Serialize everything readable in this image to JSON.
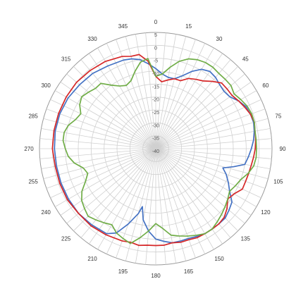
{
  "chart_data": {
    "type": "line",
    "subtype": "polar-radiation-pattern",
    "title": "",
    "angle_direction": "clockwise",
    "angle_zero": "top",
    "angle_ticks": [
      "0",
      "15",
      "30",
      "45",
      "60",
      "75",
      "90",
      "105",
      "120",
      "135",
      "150",
      "165",
      "180",
      "195",
      "210",
      "225",
      "240",
      "255",
      "270",
      "285",
      "300",
      "315",
      "330",
      "345"
    ],
    "radial_ticks": [
      "5",
      "0",
      "-5",
      "-10",
      "-15",
      "-20",
      "-25",
      "-30",
      "-35",
      "-40"
    ],
    "rlim": [
      -40,
      5
    ],
    "grid": true,
    "legend": "none",
    "series": [
      {
        "color": "#4472c4",
        "points": [
          [
            0,
            -9
          ],
          [
            5,
            -11
          ],
          [
            10,
            -12
          ],
          [
            15,
            -12
          ],
          [
            20,
            -10
          ],
          [
            25,
            -7
          ],
          [
            30,
            -4.5
          ],
          [
            35,
            -3.5
          ],
          [
            40,
            -4
          ],
          [
            45,
            -5
          ],
          [
            50,
            -5.5
          ],
          [
            55,
            -5
          ],
          [
            60,
            -3
          ],
          [
            65,
            -1.5
          ],
          [
            70,
            -1
          ],
          [
            75,
            -0.8
          ],
          [
            80,
            -1.3
          ],
          [
            85,
            -2
          ],
          [
            90,
            -3
          ],
          [
            95,
            -4
          ],
          [
            100,
            -5
          ],
          [
            103,
            -9
          ],
          [
            106,
            -13
          ],
          [
            110,
            -11
          ],
          [
            115,
            -9
          ],
          [
            120,
            -7
          ],
          [
            125,
            -4
          ],
          [
            130,
            -3
          ],
          [
            135,
            -2
          ],
          [
            140,
            -2
          ],
          [
            145,
            -2
          ],
          [
            150,
            -2
          ],
          [
            155,
            -2.5
          ],
          [
            160,
            -3
          ],
          [
            165,
            -3
          ],
          [
            170,
            -3
          ],
          [
            175,
            -4
          ],
          [
            180,
            -5
          ],
          [
            185,
            -8
          ],
          [
            190,
            -12
          ],
          [
            193,
            -17
          ],
          [
            195,
            -14
          ],
          [
            200,
            -9
          ],
          [
            205,
            -4
          ],
          [
            210,
            -2
          ],
          [
            220,
            -1.5
          ],
          [
            230,
            -1
          ],
          [
            240,
            -1
          ],
          [
            250,
            -1
          ],
          [
            260,
            -1
          ],
          [
            270,
            -0.8
          ],
          [
            280,
            -0.5
          ],
          [
            290,
            -0.5
          ],
          [
            300,
            -0.8
          ],
          [
            310,
            -1.5
          ],
          [
            320,
            -2
          ],
          [
            330,
            -3
          ],
          [
            340,
            -3.5
          ],
          [
            345,
            -4
          ],
          [
            350,
            -5
          ],
          [
            355,
            -7
          ]
        ]
      },
      {
        "color": "#d62728",
        "points": [
          [
            0,
            -12
          ],
          [
            5,
            -14
          ],
          [
            10,
            -13
          ],
          [
            15,
            -12
          ],
          [
            20,
            -12
          ],
          [
            25,
            -10
          ],
          [
            30,
            -9
          ],
          [
            35,
            -8
          ],
          [
            40,
            -6
          ],
          [
            45,
            -4
          ],
          [
            50,
            -4
          ],
          [
            55,
            -4
          ],
          [
            60,
            -3
          ],
          [
            65,
            -2
          ],
          [
            70,
            -1
          ],
          [
            75,
            -0.5
          ],
          [
            80,
            -1
          ],
          [
            85,
            -1.2
          ],
          [
            90,
            -1.5
          ],
          [
            95,
            -2
          ],
          [
            100,
            -2.5
          ],
          [
            105,
            -2.8
          ],
          [
            110,
            -3
          ],
          [
            115,
            -3
          ],
          [
            120,
            -5
          ],
          [
            125,
            -6
          ],
          [
            130,
            -4
          ],
          [
            135,
            -2.5
          ],
          [
            140,
            -2
          ],
          [
            145,
            -2
          ],
          [
            150,
            -2
          ],
          [
            155,
            -2
          ],
          [
            160,
            -2.5
          ],
          [
            165,
            -2.5
          ],
          [
            170,
            -3
          ],
          [
            175,
            -2.5
          ],
          [
            180,
            -2.5
          ],
          [
            185,
            -2.5
          ],
          [
            190,
            -2
          ],
          [
            195,
            -2.5
          ],
          [
            200,
            -2
          ],
          [
            210,
            -1.5
          ],
          [
            220,
            -1
          ],
          [
            230,
            -1
          ],
          [
            240,
            -0.5
          ],
          [
            250,
            -0.5
          ],
          [
            260,
            -0.5
          ],
          [
            270,
            0
          ],
          [
            280,
            0
          ],
          [
            290,
            0
          ],
          [
            300,
            0
          ],
          [
            310,
            0
          ],
          [
            320,
            -0.5
          ],
          [
            330,
            -1
          ],
          [
            340,
            -2
          ],
          [
            345,
            -3
          ],
          [
            350,
            -3
          ],
          [
            355,
            -6
          ]
        ]
      },
      {
        "color": "#70ad47",
        "points": [
          [
            0,
            -12
          ],
          [
            5,
            -11
          ],
          [
            10,
            -8
          ],
          [
            15,
            -5
          ],
          [
            20,
            -3
          ],
          [
            25,
            -2
          ],
          [
            30,
            -1.5
          ],
          [
            35,
            -1.5
          ],
          [
            40,
            -2
          ],
          [
            45,
            -2
          ],
          [
            50,
            -2
          ],
          [
            55,
            -3
          ],
          [
            60,
            -2
          ],
          [
            65,
            -1
          ],
          [
            70,
            -0.5
          ],
          [
            75,
            -0.5
          ],
          [
            80,
            -1
          ],
          [
            85,
            -1
          ],
          [
            90,
            -1
          ],
          [
            95,
            -1
          ],
          [
            100,
            -1.5
          ],
          [
            105,
            -3
          ],
          [
            110,
            -5
          ],
          [
            115,
            -6
          ],
          [
            120,
            -7
          ],
          [
            125,
            -6
          ],
          [
            130,
            -5
          ],
          [
            135,
            -4
          ],
          [
            140,
            -3
          ],
          [
            145,
            -2
          ],
          [
            150,
            -2
          ],
          [
            155,
            -3
          ],
          [
            160,
            -4
          ],
          [
            165,
            -5
          ],
          [
            170,
            -6
          ],
          [
            175,
            -9
          ],
          [
            180,
            -11
          ],
          [
            185,
            -8
          ],
          [
            190,
            -5
          ],
          [
            195,
            -2
          ],
          [
            200,
            -3
          ],
          [
            205,
            -4
          ],
          [
            210,
            -6
          ],
          [
            215,
            -5
          ],
          [
            220,
            -4
          ],
          [
            225,
            -3
          ],
          [
            230,
            -4
          ],
          [
            235,
            -5
          ],
          [
            240,
            -7
          ],
          [
            245,
            -10
          ],
          [
            250,
            -12
          ],
          [
            255,
            -11
          ],
          [
            260,
            -8
          ],
          [
            265,
            -6
          ],
          [
            270,
            -5
          ],
          [
            275,
            -4
          ],
          [
            280,
            -4
          ],
          [
            285,
            -5
          ],
          [
            290,
            -7
          ],
          [
            295,
            -8
          ],
          [
            300,
            -6
          ],
          [
            305,
            -5
          ],
          [
            310,
            -6
          ],
          [
            315,
            -7
          ],
          [
            320,
            -7
          ],
          [
            325,
            -10
          ],
          [
            330,
            -12
          ],
          [
            335,
            -13
          ],
          [
            340,
            -12
          ],
          [
            345,
            -9
          ],
          [
            350,
            -6
          ],
          [
            355,
            -5
          ]
        ]
      }
    ]
  }
}
